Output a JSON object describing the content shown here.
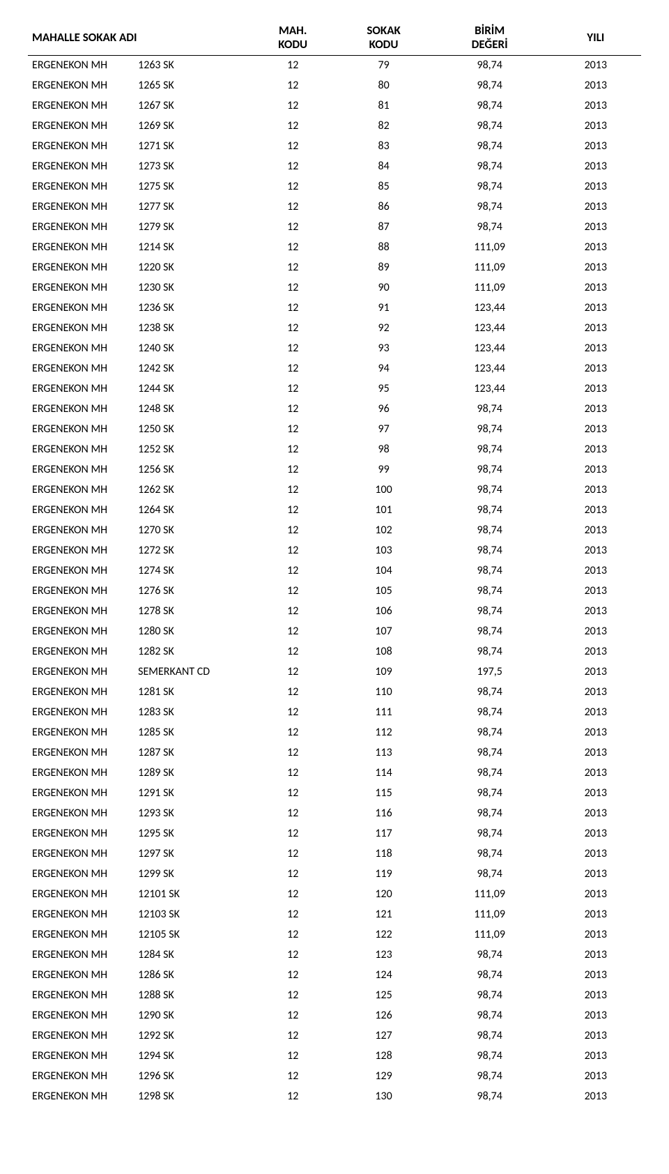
{
  "headers": {
    "mahalle_sokak_adi": "MAHALLE SOKAK ADI",
    "mah_kodu_l1": "MAH.",
    "mah_kodu_l2": "KODU",
    "sokak_kodu_l1": "SOKAK",
    "sokak_kodu_l2": "KODU",
    "birim_degeri_l1": "BİRİM",
    "birim_degeri_l2": "DEĞERİ",
    "yili": "YILI"
  },
  "rows": [
    {
      "mahalle": "ERGENEKON MH",
      "sokak": "1263 SK",
      "mah_kodu": "12",
      "sokak_kodu": "79",
      "birim": "98,74",
      "yil": "2013"
    },
    {
      "mahalle": "ERGENEKON MH",
      "sokak": "1265 SK",
      "mah_kodu": "12",
      "sokak_kodu": "80",
      "birim": "98,74",
      "yil": "2013"
    },
    {
      "mahalle": "ERGENEKON MH",
      "sokak": "1267 SK",
      "mah_kodu": "12",
      "sokak_kodu": "81",
      "birim": "98,74",
      "yil": "2013"
    },
    {
      "mahalle": "ERGENEKON MH",
      "sokak": "1269 SK",
      "mah_kodu": "12",
      "sokak_kodu": "82",
      "birim": "98,74",
      "yil": "2013"
    },
    {
      "mahalle": "ERGENEKON MH",
      "sokak": "1271 SK",
      "mah_kodu": "12",
      "sokak_kodu": "83",
      "birim": "98,74",
      "yil": "2013"
    },
    {
      "mahalle": "ERGENEKON MH",
      "sokak": "1273 SK",
      "mah_kodu": "12",
      "sokak_kodu": "84",
      "birim": "98,74",
      "yil": "2013"
    },
    {
      "mahalle": "ERGENEKON MH",
      "sokak": "1275 SK",
      "mah_kodu": "12",
      "sokak_kodu": "85",
      "birim": "98,74",
      "yil": "2013"
    },
    {
      "mahalle": "ERGENEKON MH",
      "sokak": "1277 SK",
      "mah_kodu": "12",
      "sokak_kodu": "86",
      "birim": "98,74",
      "yil": "2013"
    },
    {
      "mahalle": "ERGENEKON MH",
      "sokak": "1279 SK",
      "mah_kodu": "12",
      "sokak_kodu": "87",
      "birim": "98,74",
      "yil": "2013"
    },
    {
      "mahalle": "ERGENEKON MH",
      "sokak": "1214 SK",
      "mah_kodu": "12",
      "sokak_kodu": "88",
      "birim": "111,09",
      "yil": "2013"
    },
    {
      "mahalle": "ERGENEKON MH",
      "sokak": "1220 SK",
      "mah_kodu": "12",
      "sokak_kodu": "89",
      "birim": "111,09",
      "yil": "2013"
    },
    {
      "mahalle": "ERGENEKON MH",
      "sokak": "1230 SK",
      "mah_kodu": "12",
      "sokak_kodu": "90",
      "birim": "111,09",
      "yil": "2013"
    },
    {
      "mahalle": "ERGENEKON MH",
      "sokak": "1236 SK",
      "mah_kodu": "12",
      "sokak_kodu": "91",
      "birim": "123,44",
      "yil": "2013"
    },
    {
      "mahalle": "ERGENEKON MH",
      "sokak": "1238 SK",
      "mah_kodu": "12",
      "sokak_kodu": "92",
      "birim": "123,44",
      "yil": "2013"
    },
    {
      "mahalle": "ERGENEKON MH",
      "sokak": "1240 SK",
      "mah_kodu": "12",
      "sokak_kodu": "93",
      "birim": "123,44",
      "yil": "2013"
    },
    {
      "mahalle": "ERGENEKON MH",
      "sokak": "1242 SK",
      "mah_kodu": "12",
      "sokak_kodu": "94",
      "birim": "123,44",
      "yil": "2013"
    },
    {
      "mahalle": "ERGENEKON MH",
      "sokak": "1244 SK",
      "mah_kodu": "12",
      "sokak_kodu": "95",
      "birim": "123,44",
      "yil": "2013"
    },
    {
      "mahalle": "ERGENEKON MH",
      "sokak": "1248 SK",
      "mah_kodu": "12",
      "sokak_kodu": "96",
      "birim": "98,74",
      "yil": "2013"
    },
    {
      "mahalle": "ERGENEKON MH",
      "sokak": "1250 SK",
      "mah_kodu": "12",
      "sokak_kodu": "97",
      "birim": "98,74",
      "yil": "2013"
    },
    {
      "mahalle": "ERGENEKON MH",
      "sokak": "1252 SK",
      "mah_kodu": "12",
      "sokak_kodu": "98",
      "birim": "98,74",
      "yil": "2013"
    },
    {
      "mahalle": "ERGENEKON MH",
      "sokak": "1256 SK",
      "mah_kodu": "12",
      "sokak_kodu": "99",
      "birim": "98,74",
      "yil": "2013"
    },
    {
      "mahalle": "ERGENEKON MH",
      "sokak": "1262 SK",
      "mah_kodu": "12",
      "sokak_kodu": "100",
      "birim": "98,74",
      "yil": "2013"
    },
    {
      "mahalle": "ERGENEKON MH",
      "sokak": "1264 SK",
      "mah_kodu": "12",
      "sokak_kodu": "101",
      "birim": "98,74",
      "yil": "2013"
    },
    {
      "mahalle": "ERGENEKON MH",
      "sokak": "1270 SK",
      "mah_kodu": "12",
      "sokak_kodu": "102",
      "birim": "98,74",
      "yil": "2013"
    },
    {
      "mahalle": "ERGENEKON MH",
      "sokak": "1272 SK",
      "mah_kodu": "12",
      "sokak_kodu": "103",
      "birim": "98,74",
      "yil": "2013"
    },
    {
      "mahalle": "ERGENEKON MH",
      "sokak": "1274 SK",
      "mah_kodu": "12",
      "sokak_kodu": "104",
      "birim": "98,74",
      "yil": "2013"
    },
    {
      "mahalle": "ERGENEKON MH",
      "sokak": "1276 SK",
      "mah_kodu": "12",
      "sokak_kodu": "105",
      "birim": "98,74",
      "yil": "2013"
    },
    {
      "mahalle": "ERGENEKON MH",
      "sokak": "1278 SK",
      "mah_kodu": "12",
      "sokak_kodu": "106",
      "birim": "98,74",
      "yil": "2013"
    },
    {
      "mahalle": "ERGENEKON MH",
      "sokak": "1280 SK",
      "mah_kodu": "12",
      "sokak_kodu": "107",
      "birim": "98,74",
      "yil": "2013"
    },
    {
      "mahalle": "ERGENEKON MH",
      "sokak": "1282 SK",
      "mah_kodu": "12",
      "sokak_kodu": "108",
      "birim": "98,74",
      "yil": "2013"
    },
    {
      "mahalle": "ERGENEKON MH",
      "sokak": "SEMERKANT CD",
      "mah_kodu": "12",
      "sokak_kodu": "109",
      "birim": "197,5",
      "yil": "2013"
    },
    {
      "mahalle": "ERGENEKON MH",
      "sokak": "1281 SK",
      "mah_kodu": "12",
      "sokak_kodu": "110",
      "birim": "98,74",
      "yil": "2013"
    },
    {
      "mahalle": "ERGENEKON MH",
      "sokak": "1283 SK",
      "mah_kodu": "12",
      "sokak_kodu": "111",
      "birim": "98,74",
      "yil": "2013"
    },
    {
      "mahalle": "ERGENEKON MH",
      "sokak": "1285 SK",
      "mah_kodu": "12",
      "sokak_kodu": "112",
      "birim": "98,74",
      "yil": "2013"
    },
    {
      "mahalle": "ERGENEKON MH",
      "sokak": "1287 SK",
      "mah_kodu": "12",
      "sokak_kodu": "113",
      "birim": "98,74",
      "yil": "2013"
    },
    {
      "mahalle": "ERGENEKON MH",
      "sokak": "1289 SK",
      "mah_kodu": "12",
      "sokak_kodu": "114",
      "birim": "98,74",
      "yil": "2013"
    },
    {
      "mahalle": "ERGENEKON MH",
      "sokak": "1291 SK",
      "mah_kodu": "12",
      "sokak_kodu": "115",
      "birim": "98,74",
      "yil": "2013"
    },
    {
      "mahalle": "ERGENEKON MH",
      "sokak": "1293 SK",
      "mah_kodu": "12",
      "sokak_kodu": "116",
      "birim": "98,74",
      "yil": "2013"
    },
    {
      "mahalle": "ERGENEKON MH",
      "sokak": "1295 SK",
      "mah_kodu": "12",
      "sokak_kodu": "117",
      "birim": "98,74",
      "yil": "2013"
    },
    {
      "mahalle": "ERGENEKON MH",
      "sokak": "1297 SK",
      "mah_kodu": "12",
      "sokak_kodu": "118",
      "birim": "98,74",
      "yil": "2013"
    },
    {
      "mahalle": "ERGENEKON MH",
      "sokak": "1299 SK",
      "mah_kodu": "12",
      "sokak_kodu": "119",
      "birim": "98,74",
      "yil": "2013"
    },
    {
      "mahalle": "ERGENEKON MH",
      "sokak": "12101 SK",
      "mah_kodu": "12",
      "sokak_kodu": "120",
      "birim": "111,09",
      "yil": "2013"
    },
    {
      "mahalle": "ERGENEKON MH",
      "sokak": "12103 SK",
      "mah_kodu": "12",
      "sokak_kodu": "121",
      "birim": "111,09",
      "yil": "2013"
    },
    {
      "mahalle": "ERGENEKON MH",
      "sokak": "12105 SK",
      "mah_kodu": "12",
      "sokak_kodu": "122",
      "birim": "111,09",
      "yil": "2013"
    },
    {
      "mahalle": "ERGENEKON MH",
      "sokak": "1284 SK",
      "mah_kodu": "12",
      "sokak_kodu": "123",
      "birim": "98,74",
      "yil": "2013"
    },
    {
      "mahalle": "ERGENEKON MH",
      "sokak": "1286 SK",
      "mah_kodu": "12",
      "sokak_kodu": "124",
      "birim": "98,74",
      "yil": "2013"
    },
    {
      "mahalle": "ERGENEKON MH",
      "sokak": "1288 SK",
      "mah_kodu": "12",
      "sokak_kodu": "125",
      "birim": "98,74",
      "yil": "2013"
    },
    {
      "mahalle": "ERGENEKON MH",
      "sokak": "1290 SK",
      "mah_kodu": "12",
      "sokak_kodu": "126",
      "birim": "98,74",
      "yil": "2013"
    },
    {
      "mahalle": "ERGENEKON MH",
      "sokak": "1292 SK",
      "mah_kodu": "12",
      "sokak_kodu": "127",
      "birim": "98,74",
      "yil": "2013"
    },
    {
      "mahalle": "ERGENEKON MH",
      "sokak": "1294 SK",
      "mah_kodu": "12",
      "sokak_kodu": "128",
      "birim": "98,74",
      "yil": "2013"
    },
    {
      "mahalle": "ERGENEKON MH",
      "sokak": "1296 SK",
      "mah_kodu": "12",
      "sokak_kodu": "129",
      "birim": "98,74",
      "yil": "2013"
    },
    {
      "mahalle": "ERGENEKON MH",
      "sokak": "1298 SK",
      "mah_kodu": "12",
      "sokak_kodu": "130",
      "birim": "98,74",
      "yil": "2013"
    }
  ]
}
